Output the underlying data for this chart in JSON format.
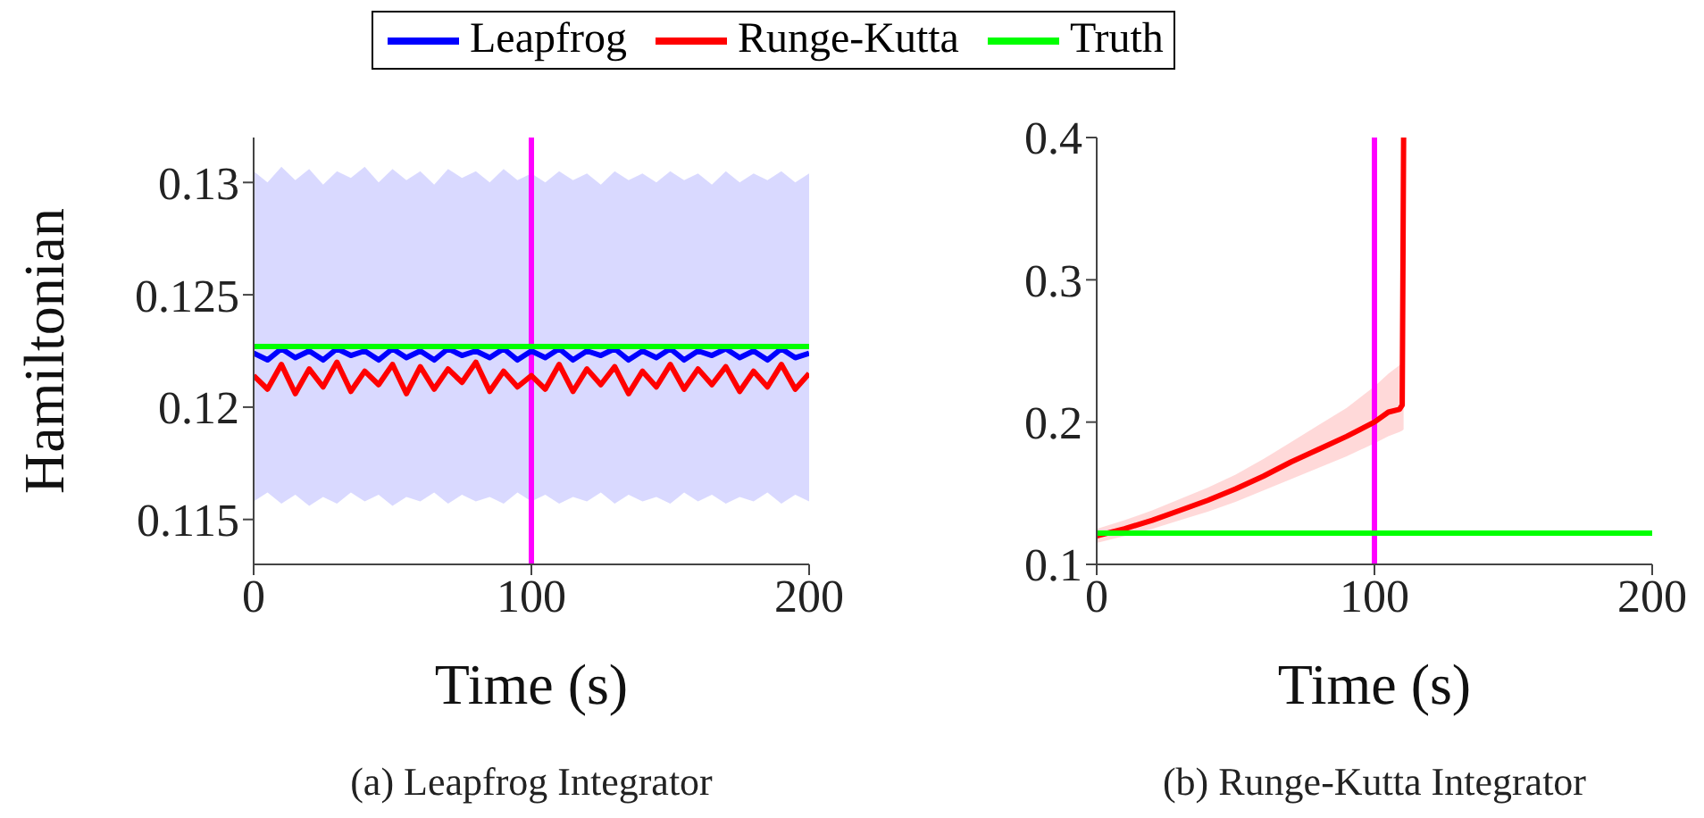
{
  "chart_data": [
    {
      "type": "line",
      "title": "(a) Leapfrog Integrator",
      "xlabel": "Time (s)",
      "ylabel": "Hamiltonian",
      "xlim": [
        0,
        200
      ],
      "xticks": [
        0,
        100,
        200
      ],
      "ylim": [
        0.113,
        0.132
      ],
      "yticks": [
        0.115,
        0.12,
        0.125,
        0.13
      ],
      "legend": "top",
      "ref_lines": [
        {
          "axis": "x",
          "value": 100,
          "color": "#ff00ff"
        }
      ],
      "series": [
        {
          "name": "Leapfrog",
          "color": "#0000ff",
          "x": [
            0,
            5,
            10,
            15,
            20,
            25,
            30,
            35,
            40,
            45,
            50,
            55,
            60,
            65,
            70,
            75,
            80,
            85,
            90,
            95,
            100,
            105,
            110,
            115,
            120,
            125,
            130,
            135,
            140,
            145,
            150,
            155,
            160,
            165,
            170,
            175,
            180,
            185,
            190,
            195,
            200
          ],
          "values": [
            0.1224,
            0.1221,
            0.1226,
            0.1222,
            0.1225,
            0.1221,
            0.1226,
            0.1223,
            0.1225,
            0.1221,
            0.1226,
            0.1222,
            0.1225,
            0.1221,
            0.1226,
            0.1223,
            0.1225,
            0.1222,
            0.1226,
            0.1221,
            0.1225,
            0.1222,
            0.1226,
            0.1221,
            0.1225,
            0.1223,
            0.1226,
            0.1221,
            0.1225,
            0.1222,
            0.1226,
            0.1221,
            0.1225,
            0.1223,
            0.1226,
            0.1222,
            0.1225,
            0.1221,
            0.1226,
            0.1222,
            0.1224
          ],
          "lower": [
            0.1158,
            0.1162,
            0.1157,
            0.1161,
            0.1156,
            0.116,
            0.1157,
            0.1162,
            0.1158,
            0.1161,
            0.1156,
            0.116,
            0.1158,
            0.1162,
            0.1157,
            0.1161,
            0.1158,
            0.116,
            0.1157,
            0.1162,
            0.1158,
            0.1161,
            0.1157,
            0.116,
            0.1158,
            0.1162,
            0.1157,
            0.1161,
            0.1158,
            0.116,
            0.1157,
            0.1162,
            0.1158,
            0.1161,
            0.1157,
            0.116,
            0.1158,
            0.1162,
            0.1157,
            0.1161,
            0.1158
          ],
          "upper": [
            0.1305,
            0.13,
            0.1307,
            0.1301,
            0.1306,
            0.1299,
            0.1305,
            0.1302,
            0.1307,
            0.13,
            0.1306,
            0.1301,
            0.1305,
            0.1299,
            0.1306,
            0.1302,
            0.1305,
            0.13,
            0.1306,
            0.1301,
            0.1304,
            0.13,
            0.1305,
            0.1301,
            0.1304,
            0.1299,
            0.1305,
            0.1301,
            0.1304,
            0.13,
            0.1305,
            0.1301,
            0.1304,
            0.1299,
            0.1305,
            0.13,
            0.1304,
            0.1301,
            0.1305,
            0.13,
            0.1304
          ]
        },
        {
          "name": "Runge-Kutta",
          "color": "#ff0000",
          "x": [
            0,
            5,
            10,
            15,
            20,
            25,
            30,
            35,
            40,
            45,
            50,
            55,
            60,
            65,
            70,
            75,
            80,
            85,
            90,
            95,
            100,
            105,
            110,
            115,
            120,
            125,
            130,
            135,
            140,
            145,
            150,
            155,
            160,
            165,
            170,
            175,
            180,
            185,
            190,
            195,
            200
          ],
          "values": [
            0.1214,
            0.1208,
            0.1219,
            0.1206,
            0.1217,
            0.1209,
            0.122,
            0.1207,
            0.1216,
            0.121,
            0.1219,
            0.1206,
            0.1218,
            0.1208,
            0.1217,
            0.1211,
            0.122,
            0.1207,
            0.1216,
            0.1209,
            0.1214,
            0.1208,
            0.1219,
            0.1207,
            0.1217,
            0.121,
            0.1218,
            0.1206,
            0.1216,
            0.1209,
            0.1219,
            0.1208,
            0.1217,
            0.121,
            0.1218,
            0.1207,
            0.1216,
            0.1209,
            0.1219,
            0.1208,
            0.1215
          ]
        },
        {
          "name": "Truth",
          "color": "#00ff00",
          "x": [
            0,
            200
          ],
          "values": [
            0.1227,
            0.1227
          ]
        }
      ]
    },
    {
      "type": "line",
      "title": "(b) Runge-Kutta Integrator",
      "xlabel": "Time (s)",
      "xlim": [
        0,
        200
      ],
      "xticks": [
        0,
        100,
        200
      ],
      "ylim": [
        0.1,
        0.4
      ],
      "yticks": [
        0.1,
        0.2,
        0.3,
        0.4
      ],
      "ref_lines": [
        {
          "axis": "x",
          "value": 100,
          "color": "#ff00ff"
        }
      ],
      "series": [
        {
          "color": "#ff0000",
          "x": [
            0,
            10,
            20,
            30,
            40,
            50,
            60,
            70,
            80,
            90,
            100,
            105,
            109,
            110,
            110.5
          ],
          "values": [
            0.12,
            0.125,
            0.131,
            0.138,
            0.145,
            0.153,
            0.162,
            0.172,
            0.181,
            0.19,
            0.2,
            0.207,
            0.209,
            0.212,
            0.4
          ],
          "lower": [
            0.115,
            0.12,
            0.125,
            0.131,
            0.137,
            0.144,
            0.152,
            0.16,
            0.168,
            0.176,
            0.185,
            0.19,
            0.193,
            0.194,
            0.195
          ],
          "upper": [
            0.125,
            0.131,
            0.138,
            0.146,
            0.154,
            0.163,
            0.174,
            0.186,
            0.198,
            0.21,
            0.225,
            0.234,
            0.24,
            0.242,
            0.4
          ]
        },
        {
          "color": "#00ff00",
          "x": [
            0,
            200
          ],
          "values": [
            0.122,
            0.122
          ]
        }
      ]
    }
  ]
}
